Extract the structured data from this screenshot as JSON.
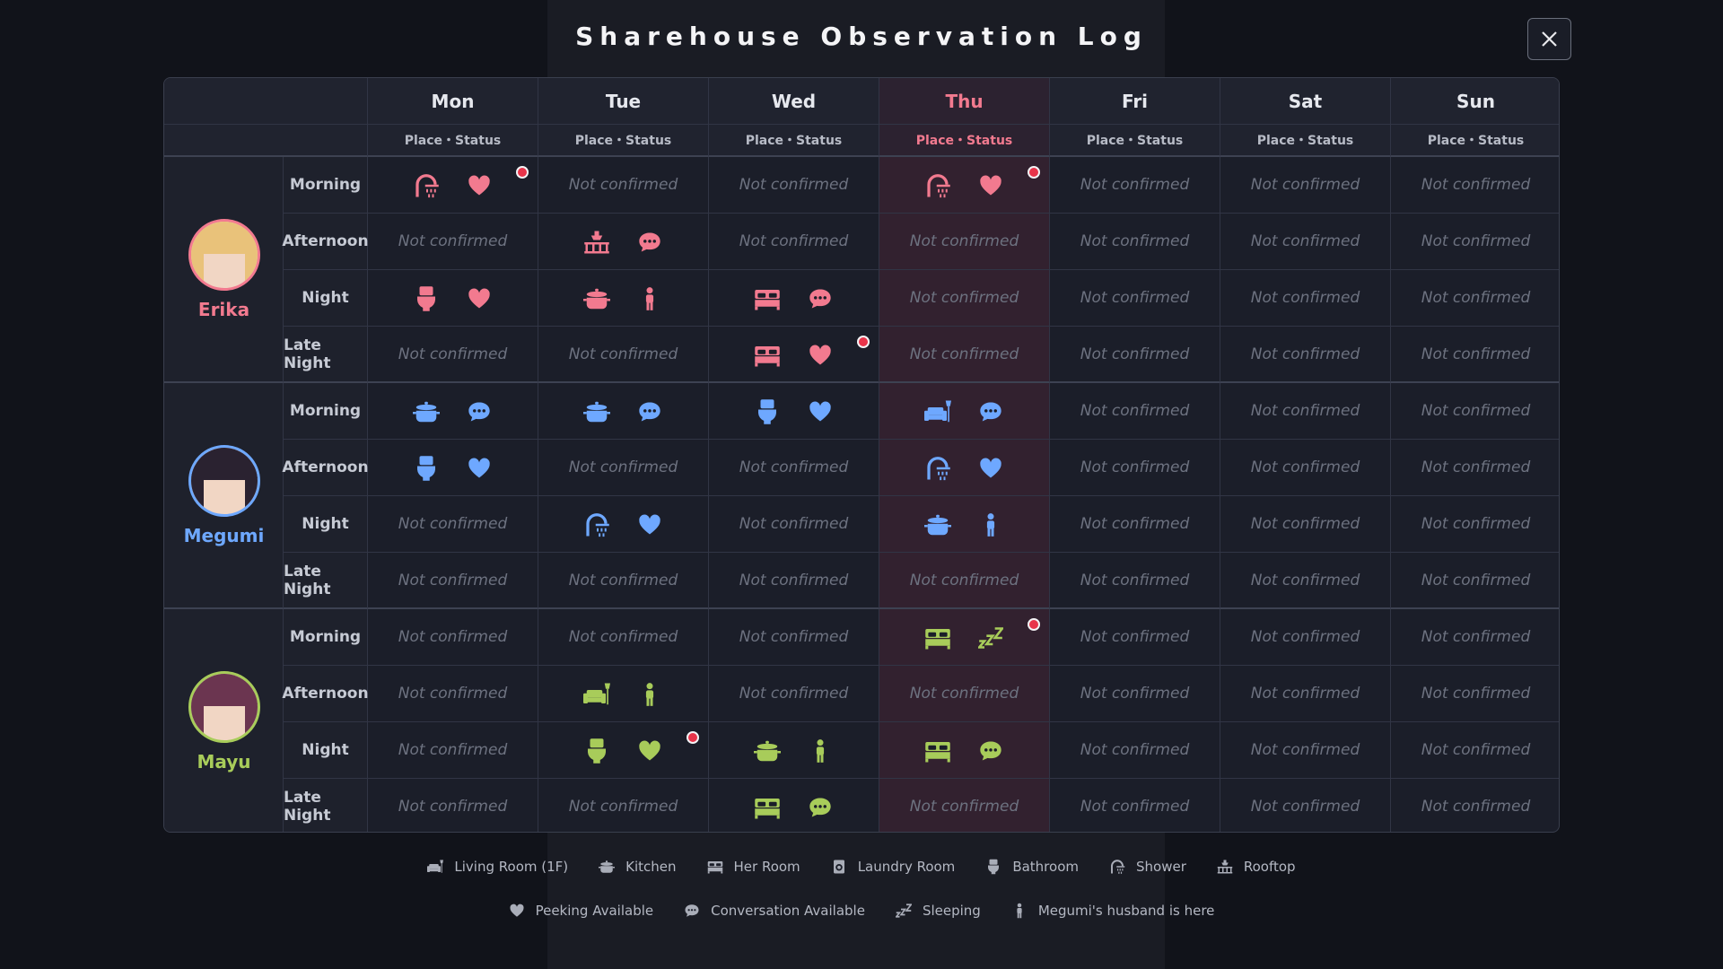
{
  "title": "Sharehouse Observation Log",
  "days": [
    "Mon",
    "Tue",
    "Wed",
    "Thu",
    "Fri",
    "Sat",
    "Sun"
  ],
  "highlight_day": "Thu",
  "subheader": "Place・Status",
  "characters": [
    {
      "name": "Erika",
      "color": "#f27a8f",
      "hair": "#e9c27a",
      "rows": [
        {
          "slot": "Morning",
          "cells": [
            {
              "place": "Shower",
              "status": "Peeking Available",
              "new": true
            },
            "Not confirmed",
            "Not confirmed",
            {
              "place": "Shower",
              "status": "Peeking Available",
              "new": true
            },
            "Not confirmed",
            "Not confirmed",
            "Not confirmed"
          ]
        },
        {
          "slot": "Afternoon",
          "cells": [
            "Not confirmed",
            {
              "place": "Rooftop",
              "status": "Conversation Available"
            },
            "Not confirmed",
            "Not confirmed",
            "Not confirmed",
            "Not confirmed",
            "Not confirmed"
          ]
        },
        {
          "slot": "Night",
          "cells": [
            {
              "place": "Bathroom",
              "status": "Peeking Available"
            },
            {
              "place": "Kitchen",
              "status": "Megumi's husband is here"
            },
            {
              "place": "Her Room",
              "status": "Conversation Available"
            },
            "Not confirmed",
            "Not confirmed",
            "Not confirmed",
            "Not confirmed"
          ]
        },
        {
          "slot": "Late Night",
          "cells": [
            "Not confirmed",
            "Not confirmed",
            {
              "place": "Her Room",
              "status": "Peeking Available",
              "new": true
            },
            "Not confirmed",
            "Not confirmed",
            "Not confirmed",
            "Not confirmed"
          ]
        }
      ]
    },
    {
      "name": "Megumi",
      "color": "#6ea8ff",
      "hair": "#2a2230",
      "rows": [
        {
          "slot": "Morning",
          "cells": [
            {
              "place": "Kitchen",
              "status": "Conversation Available"
            },
            {
              "place": "Kitchen",
              "status": "Conversation Available"
            },
            {
              "place": "Bathroom",
              "status": "Peeking Available"
            },
            {
              "place": "Living Room (1F)",
              "status": "Conversation Available"
            },
            "Not confirmed",
            "Not confirmed",
            "Not confirmed"
          ]
        },
        {
          "slot": "Afternoon",
          "cells": [
            {
              "place": "Bathroom",
              "status": "Peeking Available"
            },
            "Not confirmed",
            "Not confirmed",
            {
              "place": "Shower",
              "status": "Peeking Available"
            },
            "Not confirmed",
            "Not confirmed",
            "Not confirmed"
          ]
        },
        {
          "slot": "Night",
          "cells": [
            "Not confirmed",
            {
              "place": "Shower",
              "status": "Peeking Available"
            },
            "Not confirmed",
            {
              "place": "Kitchen",
              "status": "Megumi's husband is here"
            },
            "Not confirmed",
            "Not confirmed",
            "Not confirmed"
          ]
        },
        {
          "slot": "Late Night",
          "cells": [
            "Not confirmed",
            "Not confirmed",
            "Not confirmed",
            "Not confirmed",
            "Not confirmed",
            "Not confirmed",
            "Not confirmed"
          ]
        }
      ]
    },
    {
      "name": "Mayu",
      "color": "#a8cc5a",
      "hair": "#6b3550",
      "rows": [
        {
          "slot": "Morning",
          "cells": [
            "Not confirmed",
            "Not confirmed",
            "Not confirmed",
            {
              "place": "Her Room",
              "status": "Sleeping",
              "new": true
            },
            "Not confirmed",
            "Not confirmed",
            "Not confirmed"
          ]
        },
        {
          "slot": "Afternoon",
          "cells": [
            "Not confirmed",
            {
              "place": "Living Room (1F)",
              "status": "Megumi's husband is here"
            },
            "Not confirmed",
            "Not confirmed",
            "Not confirmed",
            "Not confirmed",
            "Not confirmed"
          ]
        },
        {
          "slot": "Night",
          "cells": [
            "Not confirmed",
            {
              "place": "Bathroom",
              "status": "Peeking Available",
              "new": true
            },
            {
              "place": "Kitchen",
              "status": "Megumi's husband is here"
            },
            {
              "place": "Her Room",
              "status": "Conversation Available"
            },
            "Not confirmed",
            "Not confirmed",
            "Not confirmed"
          ]
        },
        {
          "slot": "Late Night",
          "cells": [
            "Not confirmed",
            "Not confirmed",
            {
              "place": "Her Room",
              "status": "Conversation Available"
            },
            "Not confirmed",
            "Not confirmed",
            "Not confirmed",
            "Not confirmed"
          ]
        }
      ]
    }
  ],
  "legend": {
    "places": [
      "Living Room (1F)",
      "Kitchen",
      "Her Room",
      "Laundry Room",
      "Bathroom",
      "Shower",
      "Rooftop"
    ],
    "statuses": [
      "Peeking Available",
      "Conversation Available",
      "Sleeping",
      "Megumi's husband is here"
    ]
  }
}
